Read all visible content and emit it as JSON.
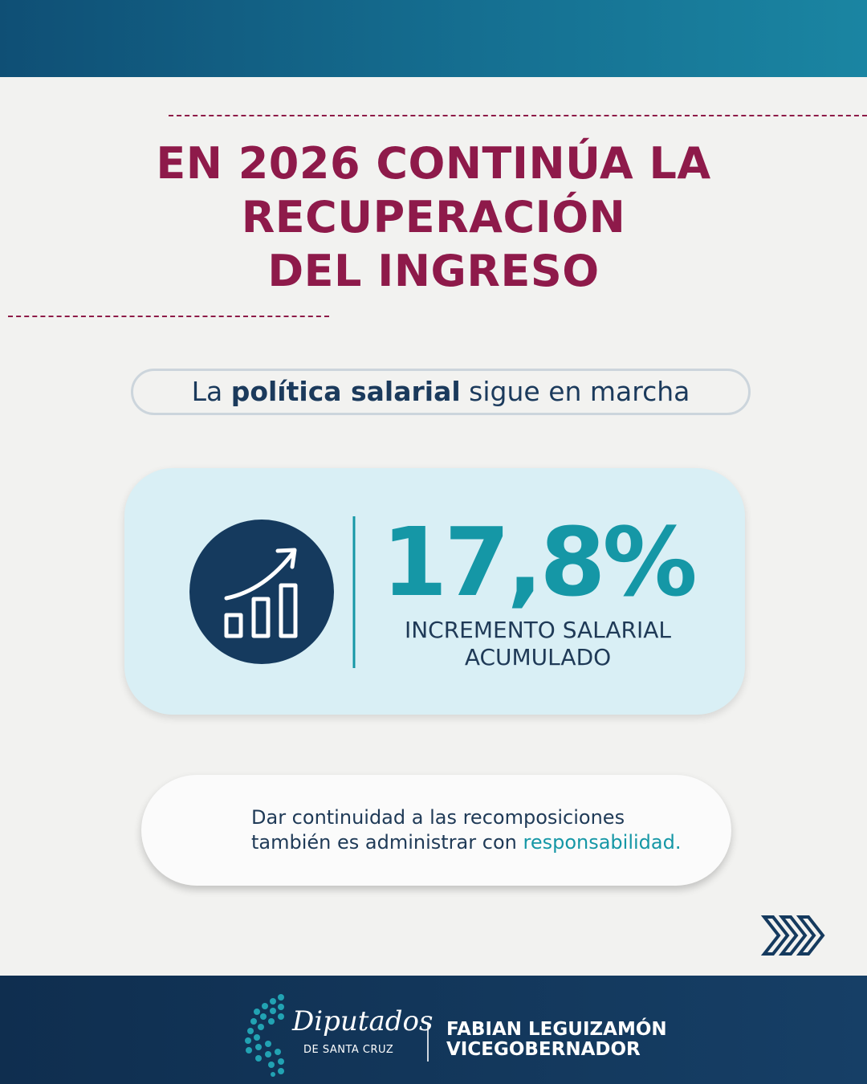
{
  "header": {
    "title_lines": [
      "EN 2026 CONTINÚA LA",
      "RECUPERACIÓN",
      "DEL INGRESO"
    ]
  },
  "subtitle": {
    "parts": [
      "La ",
      "política salarial",
      " sigue en marcha"
    ]
  },
  "highlight": {
    "stat": "17,8%",
    "label_lines": [
      "INCREMENTO SALARIAL",
      "ACUMULADO"
    ]
  },
  "note": {
    "parts": [
      "Dar continuidad a las recomposiciones",
      "también es administrar con ",
      "responsabilidad."
    ]
  },
  "footer": {
    "logo_name": "Diputados",
    "logo_subtitle": "DE SANTA CRUZ",
    "person_name": "FABIAN LEGUIZAMÓN",
    "person_role": "VICEGOBERNADOR"
  }
}
